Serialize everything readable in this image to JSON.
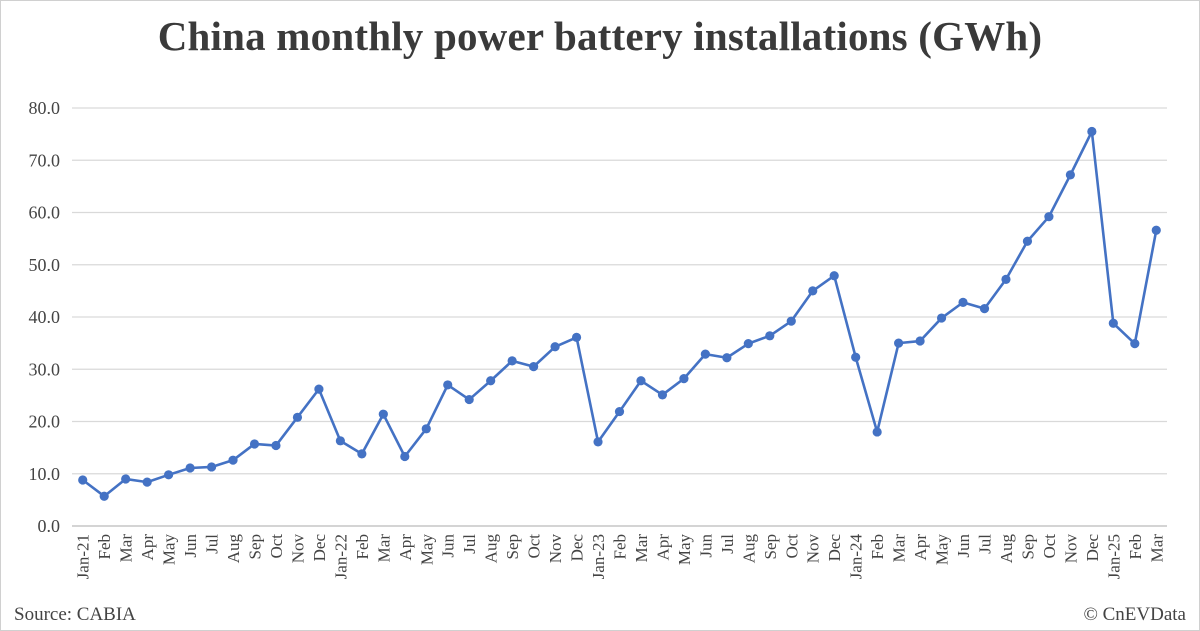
{
  "title": "China monthly power battery installations (GWh)",
  "source": "Source: CABIA",
  "credit": "© CnEVData",
  "colors": {
    "line": "#4472C4",
    "grid": "#d9d9d9",
    "text": "#444444"
  },
  "chart_data": {
    "type": "line",
    "title": "China monthly power battery installations (GWh)",
    "xlabel": "",
    "ylabel": "",
    "ylim": [
      0,
      80
    ],
    "yticks": [
      "0.0",
      "10.0",
      "20.0",
      "30.0",
      "40.0",
      "50.0",
      "60.0",
      "70.0",
      "80.0"
    ],
    "grid": true,
    "legend": "none",
    "categories": [
      "Jan-21",
      "Feb",
      "Mar",
      "Apr",
      "May",
      "Jun",
      "Jul",
      "Aug",
      "Sep",
      "Oct",
      "Nov",
      "Dec",
      "Jan-22",
      "Feb",
      "Mar",
      "Apr",
      "May",
      "Jun",
      "Jul",
      "Aug",
      "Sep",
      "Oct",
      "Nov",
      "Dec",
      "Jan-23",
      "Feb",
      "Mar",
      "Apr",
      "May",
      "Jun",
      "Jul",
      "Aug",
      "Sep",
      "Oct",
      "Nov",
      "Dec",
      "Jan-24",
      "Feb",
      "Mar",
      "Apr",
      "May",
      "Jun",
      "Jul",
      "Aug",
      "Sep",
      "Oct",
      "Nov",
      "Dec",
      "Jan-25",
      "Feb",
      "Mar"
    ],
    "series": [
      {
        "values": [
          8.8,
          5.7,
          9.0,
          8.4,
          9.8,
          11.1,
          11.3,
          12.6,
          15.7,
          15.4,
          20.8,
          26.2,
          16.3,
          13.8,
          21.4,
          13.3,
          18.6,
          27.0,
          24.2,
          27.8,
          31.6,
          30.5,
          34.3,
          36.1,
          16.1,
          21.9,
          27.8,
          25.1,
          28.2,
          32.9,
          32.2,
          34.9,
          36.4,
          39.2,
          45.0,
          47.9,
          32.3,
          18.0,
          35.0,
          35.4,
          39.8,
          42.8,
          41.6,
          47.2,
          54.5,
          59.2,
          67.2,
          75.5,
          38.8,
          34.9,
          56.6
        ]
      }
    ]
  }
}
